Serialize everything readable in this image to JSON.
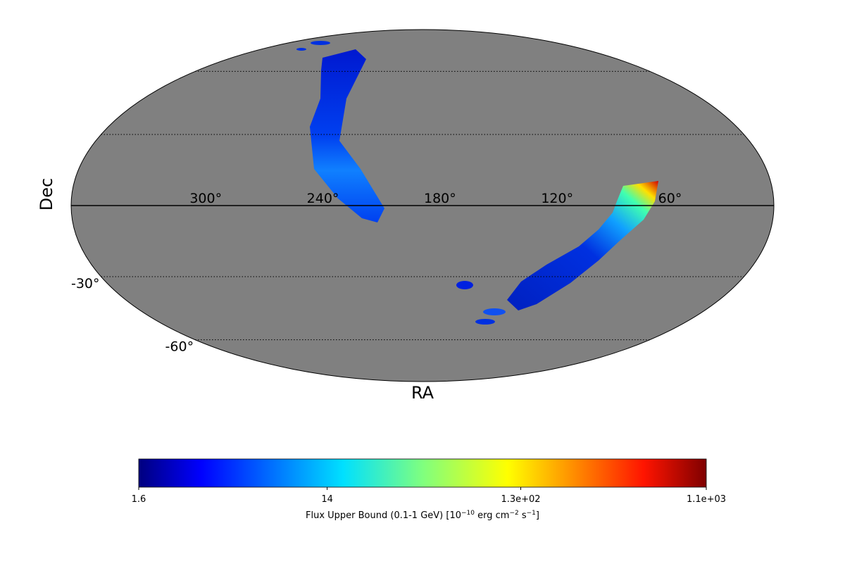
{
  "chart_data": {
    "type": "mollweide",
    "xlabel": "RA",
    "ylabel": "Dec",
    "xticks": [
      {
        "value": 300,
        "label": "300°"
      },
      {
        "value": 240,
        "label": "240°"
      },
      {
        "value": 180,
        "label": "180°"
      },
      {
        "value": 120,
        "label": "120°"
      },
      {
        "value": 60,
        "label": "60°"
      }
    ],
    "yticks": [
      {
        "value": -30,
        "label": "-30°"
      },
      {
        "value": -60,
        "label": "-60°"
      }
    ],
    "grid": true,
    "background_color": "#808080",
    "colorbar": {
      "colormap": "jet",
      "scale": "log",
      "lim": [
        1.6,
        1100
      ],
      "ticks": [
        1.6,
        14,
        {
          "value": 130,
          "label": "1.3e+02"
        },
        {
          "value": 1100,
          "label": "1.1e+03"
        }
      ],
      "label": [
        "Flux Upper Bound (0.1-1 GeV) [10",
        "−10",
        " erg cm",
        "−2",
        " s",
        "−1",
        "]"
      ]
    }
  }
}
